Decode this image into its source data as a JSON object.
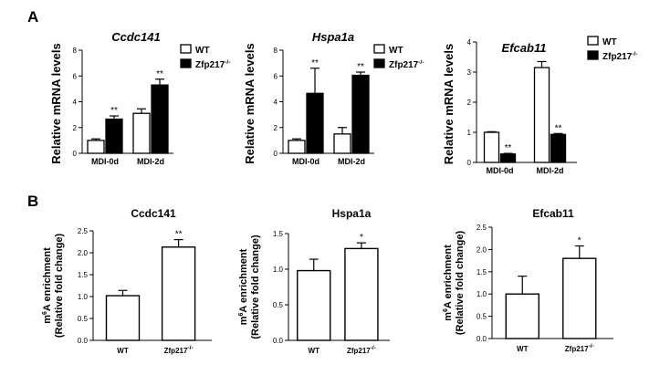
{
  "panel_labels": [
    "A",
    "B"
  ],
  "chart_data": [
    {
      "type": "bar",
      "title": "Ccdc141",
      "ylabel": "Relative mRNA levels",
      "categories": [
        "MDI-0d",
        "MDI-2d"
      ],
      "ylim": [
        0,
        8
      ],
      "yticks": [
        "0",
        "2",
        "4",
        "6",
        "8"
      ],
      "series": [
        {
          "name": "WT",
          "color": "#ffffff",
          "values": [
            1.0,
            3.1
          ],
          "errors": [
            0.12,
            0.35
          ]
        },
        {
          "name": "Zfp217",
          "name_sup": "-/-",
          "color": "#000000",
          "values": [
            2.65,
            5.3
          ],
          "errors": [
            0.25,
            0.45
          ]
        }
      ],
      "annotations": [
        [
          "",
          "**"
        ],
        [
          "",
          "**"
        ]
      ]
    },
    {
      "type": "bar",
      "title": "Hspa1a",
      "ylabel": "Relative mRNA levels",
      "categories": [
        "MDI-0d",
        "MDI-2d"
      ],
      "ylim": [
        0,
        8
      ],
      "yticks": [
        "0",
        "2",
        "4",
        "6",
        "8"
      ],
      "series": [
        {
          "name": "WT",
          "color": "#ffffff",
          "values": [
            1.0,
            1.5
          ],
          "errors": [
            0.12,
            0.5
          ]
        },
        {
          "name": "Zfp217",
          "name_sup": "-/-",
          "color": "#000000",
          "values": [
            4.65,
            6.05
          ],
          "errors": [
            1.95,
            0.25
          ]
        }
      ],
      "annotations": [
        [
          "",
          "**"
        ],
        [
          "",
          "**"
        ]
      ]
    },
    {
      "type": "bar",
      "title": "Efcab11",
      "ylabel": "Relative mRNA levels",
      "categories": [
        "MDI-0d",
        "MDI-2d"
      ],
      "ylim": [
        0,
        4
      ],
      "yticks": [
        "0",
        "1",
        "2",
        "3",
        "4"
      ],
      "series": [
        {
          "name": "WT",
          "color": "#ffffff",
          "values": [
            1.0,
            3.15
          ],
          "errors": [
            0.02,
            0.2
          ]
        },
        {
          "name": "Zfp217",
          "name_sup": "-/-",
          "color": "#000000",
          "values": [
            0.28,
            0.93
          ],
          "errors": [
            0.02,
            0.03
          ]
        }
      ],
      "annotations": [
        [
          "",
          "**"
        ],
        [
          "",
          "**"
        ]
      ]
    },
    {
      "type": "bar",
      "title": "Ccdc141",
      "ylabel_line1_pre": "m",
      "ylabel_line1_sup": "6",
      "ylabel_line1_post": "A enrichment",
      "ylabel_line2": "(Relative fold  change)",
      "categories": [
        "WT",
        "Zfp217"
      ],
      "category_sup": [
        "",
        "-/-"
      ],
      "ylim": [
        0,
        2.5
      ],
      "yticks": [
        "0.0",
        "0.5",
        "1.0",
        "1.5",
        "2.0",
        "2.5"
      ],
      "values": [
        1.02,
        2.13
      ],
      "errors": [
        0.12,
        0.17
      ],
      "annotations": [
        "",
        "**"
      ]
    },
    {
      "type": "bar",
      "title": "Hspa1a",
      "ylabel_line1_pre": "m",
      "ylabel_line1_sup": "6",
      "ylabel_line1_post": "A enrichment",
      "ylabel_line2": "(Relative fold  change)",
      "categories": [
        "WT",
        "Zfp217"
      ],
      "category_sup": [
        "",
        "-/-"
      ],
      "ylim": [
        0,
        1.5
      ],
      "yticks": [
        "0.0",
        "0.5",
        "1.0",
        "1.5"
      ],
      "values": [
        0.98,
        1.29
      ],
      "errors": [
        0.16,
        0.08
      ],
      "annotations": [
        "",
        "*"
      ]
    },
    {
      "type": "bar",
      "title": "Efcab11",
      "ylabel_line1_pre": "m",
      "ylabel_line1_sup": "6",
      "ylabel_line1_post": "A enrichment",
      "ylabel_line2": "(Relative fold  change)",
      "categories": [
        "WT",
        "Zfp217"
      ],
      "category_sup": [
        "",
        "-/-"
      ],
      "ylim": [
        0,
        2.5
      ],
      "yticks": [
        "0.0",
        "0.5",
        "1.0",
        "1.5",
        "2.0",
        "2.5"
      ],
      "values": [
        1.0,
        1.8
      ],
      "errors": [
        0.4,
        0.28
      ],
      "annotations": [
        "",
        "*"
      ]
    }
  ]
}
